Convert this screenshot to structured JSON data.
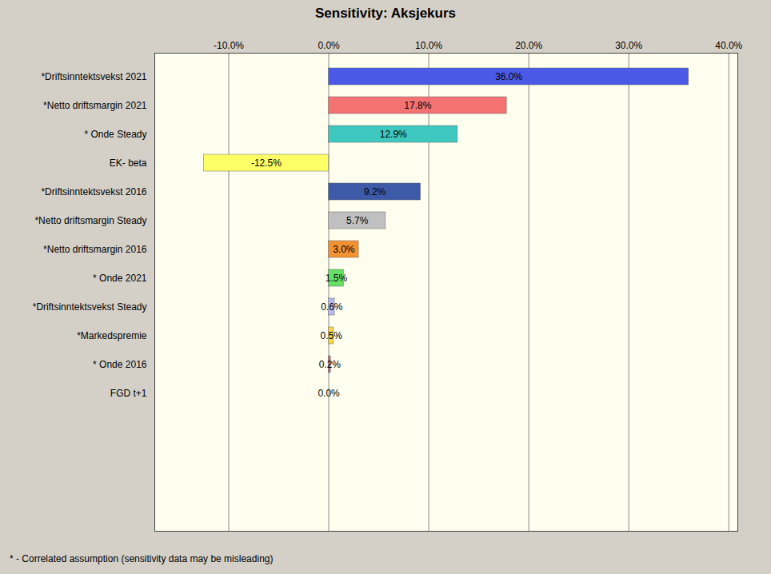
{
  "chart_data": {
    "type": "bar",
    "title": "Sensitivity: Aksjekurs",
    "orientation": "horizontal",
    "categories": [
      "*Driftsinntektsvekst 2021",
      "*Netto driftsmargin 2021",
      "* Onde Steady",
      "EK- beta",
      "*Driftsinntektsvekst 2016",
      "*Netto driftsmargin Steady",
      "*Netto driftsmargin 2016",
      "* Onde 2021",
      "*Driftsinntektsvekst Steady",
      "*Markedspremie",
      "* Onde 2016",
      "FGD t+1"
    ],
    "values": [
      36.0,
      17.8,
      12.9,
      -12.5,
      9.2,
      5.7,
      3.0,
      1.5,
      0.6,
      0.5,
      0.2,
      0.0
    ],
    "value_labels": [
      "36.0%",
      "17.8%",
      "12.9%",
      "-12.5%",
      "9.2%",
      "5.7%",
      "3.0%",
      "1.5%",
      "0.6%",
      "0.5%",
      "0.2%",
      "0.0%"
    ],
    "colors": [
      "#4a5ae6",
      "#f47272",
      "#3ec8c0",
      "#ffff66",
      "#3c5aa8",
      "#c0c0c0",
      "#f39232",
      "#66e066",
      "#b8b8f0",
      "#f5d84a",
      "#c0607a",
      "#cccccc"
    ],
    "xlim": [
      -17.4,
      40.9
    ],
    "xticks": [
      {
        "value": -10,
        "label": "-10.0%"
      },
      {
        "value": 0,
        "label": "0.0%"
      },
      {
        "value": 10,
        "label": "10.0%"
      },
      {
        "value": 20,
        "label": "20.0%"
      },
      {
        "value": 30,
        "label": "30.0%"
      },
      {
        "value": 40,
        "label": "40.0%"
      }
    ],
    "grid": true,
    "data_labels": true,
    "annotations": [
      "*  - Correlated assumption (sensitivity data may be misleading)"
    ]
  }
}
